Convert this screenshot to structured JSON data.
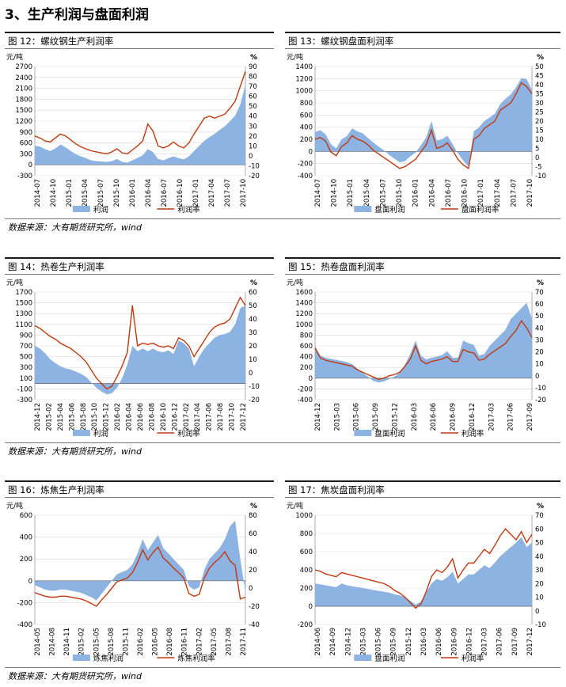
{
  "section_title": "3、生产利润与盘面利润",
  "source_text": "数据来源：大有期货研究所，wind",
  "colors": {
    "area": "#8DB3E2",
    "line": "#C0390F"
  },
  "charts": [
    {
      "caption": "图 12：螺纹钢生产利润率",
      "left_unit": "元/吨",
      "right_unit": "%",
      "legend_area": "利润",
      "legend_line": "利润率",
      "chart_data": {
        "type": "area+line",
        "x_ticks": [
          "2014-07",
          "2014-10",
          "2015-01",
          "2015-04",
          "2015-07",
          "2015-10",
          "2016-01",
          "2016-04",
          "2016-07",
          "2016-10",
          "2017-01",
          "2017-04",
          "2017-07",
          "2017-10"
        ],
        "left_ticks": [
          -300,
          0,
          300,
          600,
          900,
          1200,
          1500,
          1800,
          2100,
          2400,
          2700
        ],
        "right_ticks": [
          -20,
          -10,
          0,
          10,
          20,
          30,
          40,
          50,
          60,
          70,
          80,
          90
        ],
        "left_range": [
          -300,
          2700
        ],
        "right_range": [
          -20,
          90
        ],
        "n_points": 42,
        "series": [
          {
            "name": "利润",
            "kind": "area",
            "axis": "left",
            "values": [
              520,
              500,
              430,
              380,
              450,
              560,
              480,
              380,
              290,
              230,
              180,
              120,
              100,
              90,
              80,
              100,
              160,
              80,
              60,
              120,
              190,
              260,
              430,
              350,
              160,
              120,
              180,
              230,
              180,
              150,
              230,
              380,
              520,
              660,
              760,
              850,
              960,
              1060,
              1200,
              1350,
              1650,
              2200
            ]
          },
          {
            "name": "利润率",
            "kind": "line",
            "axis": "right",
            "values": [
              20,
              18,
              15,
              14,
              18,
              22,
              20,
              16,
              12,
              9,
              7,
              5,
              4,
              3,
              2,
              4,
              7,
              3,
              2,
              6,
              10,
              15,
              32,
              25,
              10,
              8,
              10,
              14,
              10,
              8,
              13,
              22,
              30,
              38,
              40,
              38,
              40,
              42,
              48,
              55,
              70,
              85
            ]
          }
        ]
      }
    },
    {
      "caption": "图 13：螺纹钢盘面利润率",
      "left_unit": "元/吨",
      "right_unit": "%",
      "legend_area": "盘面利润",
      "legend_line": "盘面利润率",
      "chart_data": {
        "type": "area+line",
        "x_ticks": [
          "2014-07",
          "2014-10",
          "2015-01",
          "2015-04",
          "2015-07",
          "2015-10",
          "2016-01",
          "2016-04",
          "2016-07",
          "2016-10",
          "2017-01",
          "2017-04",
          "2017-07",
          "2017-10"
        ],
        "left_ticks": [
          -400,
          -200,
          0,
          200,
          400,
          600,
          800,
          1000,
          1200,
          1400
        ],
        "right_ticks": [
          -10,
          -5,
          0,
          5,
          10,
          15,
          20,
          25,
          30,
          35,
          40,
          45,
          50
        ],
        "left_range": [
          -400,
          1400
        ],
        "right_range": [
          -10,
          50
        ],
        "n_points": 42,
        "series": [
          {
            "name": "盘面利润",
            "kind": "area",
            "axis": "left",
            "values": [
              320,
              350,
              280,
              120,
              50,
              200,
              250,
              380,
              330,
              300,
              220,
              150,
              80,
              20,
              -60,
              -120,
              -180,
              -160,
              -80,
              -20,
              100,
              230,
              500,
              180,
              200,
              260,
              120,
              -30,
              -150,
              -250,
              330,
              400,
              500,
              560,
              620,
              780,
              870,
              940,
              1060,
              1210,
              1190,
              1020
            ]
          },
          {
            "name": "盘面利润率",
            "kind": "line",
            "axis": "right",
            "values": [
              10,
              11,
              9,
              3,
              1,
              6,
              8,
              12,
              10,
              9,
              7,
              4,
              2,
              0,
              -2,
              -4,
              -6,
              -5,
              -3,
              -1,
              3,
              7,
              15,
              5,
              6,
              8,
              4,
              -1,
              -4,
              -6,
              10,
              12,
              16,
              18,
              20,
              26,
              28,
              30,
              35,
              41,
              39,
              35
            ]
          }
        ]
      }
    },
    {
      "caption": "图 14：热卷生产利润率",
      "left_unit": "元/吨",
      "right_unit": "%",
      "legend_area": "利润",
      "legend_line": "利润率",
      "chart_data": {
        "type": "area+line",
        "x_ticks": [
          "2014-12",
          "2015-02",
          "2015-04",
          "2015-06",
          "2015-08",
          "2015-10",
          "2015-12",
          "2016-02",
          "2016-04",
          "2016-06",
          "2016-08",
          "2016-10",
          "2016-12",
          "2017-02",
          "2017-04",
          "2017-06",
          "2017-08",
          "2017-10",
          "2017-12"
        ],
        "left_ticks": [
          -300,
          -100,
          100,
          300,
          500,
          700,
          900,
          1100,
          1300,
          1500,
          1700
        ],
        "right_ticks": [
          -20,
          -10,
          0,
          10,
          20,
          30,
          40,
          50,
          60
        ],
        "left_range": [
          -300,
          1700
        ],
        "right_range": [
          -20,
          60
        ],
        "n_points": 42,
        "series": [
          {
            "name": "利润",
            "kind": "area",
            "axis": "left",
            "values": [
              700,
              650,
              560,
              450,
              380,
              320,
              280,
              260,
              220,
              180,
              120,
              20,
              -80,
              -150,
              -200,
              -180,
              -80,
              100,
              350,
              700,
              600,
              650,
              600,
              650,
              600,
              580,
              620,
              550,
              800,
              750,
              650,
              320,
              500,
              650,
              750,
              850,
              900,
              920,
              960,
              1100,
              1400,
              1450
            ]
          },
          {
            "name": "利润率",
            "kind": "line",
            "axis": "right",
            "values": [
              35,
              33,
              30,
              27,
              25,
              22,
              20,
              18,
              15,
              12,
              8,
              2,
              -4,
              -8,
              -12,
              -10,
              -3,
              5,
              15,
              50,
              20,
              22,
              21,
              22,
              20,
              19,
              20,
              18,
              26,
              24,
              20,
              12,
              18,
              24,
              30,
              34,
              36,
              37,
              40,
              48,
              56,
              50
            ]
          }
        ]
      }
    },
    {
      "caption": "图 15：热卷盘面利润率",
      "left_unit": "元/吨",
      "right_unit": "%",
      "legend_area": "盘面利润",
      "legend_line": "利润率",
      "chart_data": {
        "type": "area+line",
        "x_ticks": [
          "2014-12",
          "2015-03",
          "2015-06",
          "2015-09",
          "2015-12",
          "2016-03",
          "2016-06",
          "2016-09",
          "2016-12",
          "2017-03",
          "2017-06",
          "2017-09"
        ],
        "left_ticks": [
          -400,
          -200,
          0,
          200,
          400,
          600,
          800,
          1000,
          1200,
          1400,
          1600
        ],
        "right_ticks": [
          -20,
          -10,
          0,
          10,
          20,
          30,
          40,
          50,
          60,
          70
        ],
        "left_range": [
          -400,
          1600
        ],
        "right_range": [
          -20,
          70
        ],
        "n_points": 42,
        "series": [
          {
            "name": "盘面利润",
            "kind": "area",
            "axis": "left",
            "values": [
              600,
              420,
              380,
              360,
              340,
              320,
              300,
              260,
              180,
              100,
              30,
              -50,
              -80,
              -60,
              -20,
              30,
              100,
              250,
              450,
              700,
              420,
              350,
              380,
              400,
              430,
              500,
              380,
              380,
              700,
              650,
              620,
              420,
              450,
              600,
              700,
              800,
              900,
              1100,
              1200,
              1300,
              1400,
              1100
            ]
          },
          {
            "name": "利润率",
            "kind": "line",
            "axis": "right",
            "values": [
              23,
              15,
              13,
              12,
              11,
              10,
              9,
              8,
              5,
              3,
              1,
              -1,
              -3,
              -2,
              0,
              1,
              3,
              8,
              14,
              25,
              13,
              10,
              12,
              13,
              14,
              16,
              12,
              12,
              22,
              20,
              19,
              13,
              14,
              18,
              21,
              24,
              27,
              33,
              38,
              46,
              40,
              32
            ]
          }
        ]
      }
    },
    {
      "caption": "图 16：炼焦生产利润率",
      "left_unit": "元/吨",
      "right_unit": "%",
      "legend_area": "炼焦利润",
      "legend_line": "炼焦利润率",
      "chart_data": {
        "type": "area+line",
        "x_ticks": [
          "2014-05",
          "2014-08",
          "2014-11",
          "2015-02",
          "2015-05",
          "2015-08",
          "2015-11",
          "2016-02",
          "2016-05",
          "2016-08",
          "2016-11",
          "2017-02",
          "2017-05",
          "2017-08",
          "2017-11"
        ],
        "left_ticks": [
          -400,
          -200,
          0,
          200,
          400,
          600
        ],
        "right_ticks": [
          -40,
          -20,
          0,
          20,
          40,
          60,
          80
        ],
        "left_range": [
          -400,
          600
        ],
        "right_range": [
          -40,
          80
        ],
        "n_points": 42,
        "series": [
          {
            "name": "炼焦利润",
            "kind": "area",
            "axis": "left",
            "values": [
              -40,
              -60,
              -80,
              -90,
              -90,
              -80,
              -80,
              -90,
              -100,
              -110,
              -130,
              -150,
              -180,
              -120,
              -60,
              0,
              60,
              80,
              100,
              150,
              250,
              380,
              280,
              350,
              420,
              300,
              250,
              200,
              150,
              100,
              -50,
              -80,
              -60,
              100,
              200,
              250,
              300,
              380,
              500,
              550,
              200,
              -100
            ]
          },
          {
            "name": "炼焦利润率",
            "kind": "line",
            "axis": "right",
            "values": [
              -5,
              -7,
              -9,
              -10,
              -10,
              -9,
              -9,
              -10,
              -11,
              -12,
              -14,
              -17,
              -20,
              -13,
              -7,
              0,
              7,
              9,
              11,
              17,
              28,
              42,
              31,
              39,
              45,
              33,
              28,
              22,
              17,
              11,
              -6,
              -9,
              -7,
              11,
              22,
              28,
              33,
              40,
              30,
              25,
              -12,
              -10
            ]
          }
        ]
      }
    },
    {
      "caption": "图 17：焦炭盘面利润率",
      "left_unit": "元/吨",
      "right_unit": "%",
      "legend_area": "盘面利润",
      "legend_line": "利润率",
      "chart_data": {
        "type": "area+line",
        "x_ticks": [
          "2014-06",
          "2014-09",
          "2014-12",
          "2015-03",
          "2015-06",
          "2015-09",
          "2015-12",
          "2016-03",
          "2016-06",
          "2016-09",
          "2016-12",
          "2017-03",
          "2017-06",
          "2017-09",
          "2017-12"
        ],
        "left_ticks": [
          -200,
          0,
          200,
          400,
          600,
          800,
          1000
        ],
        "right_ticks": [
          -10,
          0,
          10,
          20,
          30,
          40,
          50,
          60,
          70
        ],
        "left_range": [
          -200,
          1000
        ],
        "right_range": [
          -10,
          70
        ],
        "n_points": 42,
        "series": [
          {
            "name": "盘面利润",
            "kind": "area",
            "axis": "left",
            "values": [
              250,
              240,
              230,
              220,
              210,
              250,
              230,
              220,
              210,
              200,
              190,
              180,
              170,
              160,
              150,
              130,
              120,
              100,
              60,
              20,
              50,
              150,
              250,
              300,
              280,
              320,
              380,
              250,
              300,
              350,
              350,
              400,
              450,
              420,
              480,
              550,
              600,
              650,
              700,
              760,
              650,
              700
            ]
          },
          {
            "name": "利润率",
            "kind": "line",
            "axis": "right",
            "values": [
              30,
              29,
              27,
              26,
              25,
              28,
              27,
              26,
              25,
              24,
              23,
              22,
              21,
              20,
              18,
              15,
              13,
              10,
              6,
              2,
              5,
              14,
              25,
              30,
              28,
              32,
              38,
              24,
              30,
              35,
              35,
              40,
              45,
              42,
              48,
              55,
              60,
              56,
              52,
              58,
              50,
              56
            ]
          }
        ]
      }
    }
  ]
}
